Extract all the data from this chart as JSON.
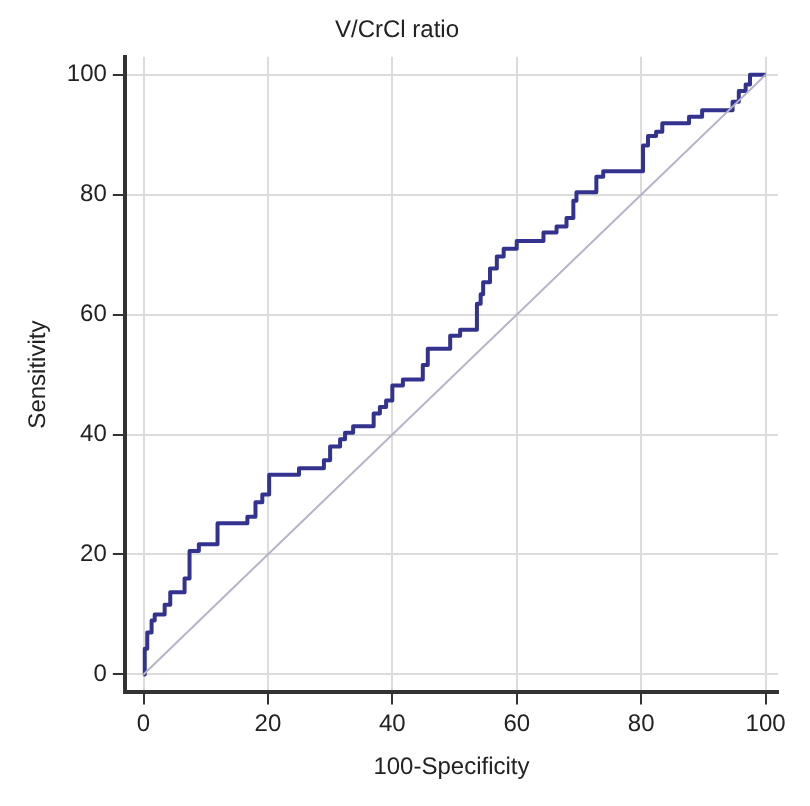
{
  "chart_data": {
    "type": "step",
    "title": "V/CrCl ratio",
    "xlabel": "100-Specificity",
    "ylabel": "Sensitivity",
    "xlim": [
      -3,
      102
    ],
    "ylim": [
      -3,
      103
    ],
    "xticks": [
      0,
      20,
      40,
      60,
      80,
      100
    ],
    "yticks": [
      0,
      20,
      40,
      60,
      80,
      100
    ],
    "grid": true,
    "legend": false,
    "marker": "none",
    "series": [
      {
        "type": "step",
        "color": "#33338f",
        "x": [
          0,
          0.2,
          0.6,
          1.3,
          1.8,
          3.4,
          4.3,
          6.6,
          7.4,
          8.9,
          11.9,
          16.7,
          18,
          19.1,
          20.2,
          25,
          29,
          30,
          31.6,
          32.4,
          33.7,
          37,
          38,
          39,
          40,
          41.7,
          44.9,
          45.7,
          49.3,
          50.9,
          53.6,
          54.2,
          54.6,
          55.7,
          56.8,
          57.9,
          60,
          64.3,
          66.4,
          68,
          69.1,
          69.6,
          72.8,
          73.9,
          80.3,
          81.1,
          82.4,
          83.4,
          87.7,
          89.8,
          94.7,
          95.7,
          96.8,
          97.5,
          100
        ],
        "values": [
          0,
          4.3,
          7,
          9,
          10,
          11.6,
          13.7,
          16,
          20.6,
          21.7,
          25.2,
          26.3,
          28.7,
          30,
          33.3,
          34.4,
          35.7,
          38,
          39.2,
          40.3,
          41.4,
          43.5,
          44.6,
          45.7,
          48.2,
          49.2,
          51.6,
          54.3,
          56.5,
          57.5,
          61.8,
          63.4,
          65.4,
          67.7,
          69.7,
          71,
          72.3,
          73.7,
          74.7,
          76.1,
          79,
          80.4,
          83,
          83.9,
          88.2,
          89.8,
          90.5,
          91.9,
          93,
          94.1,
          95.5,
          97.3,
          98.4,
          100,
          100
        ]
      },
      {
        "type": "line",
        "color": "#b4b4c8",
        "x": [
          0,
          100
        ],
        "values": [
          0,
          100
        ]
      }
    ]
  }
}
